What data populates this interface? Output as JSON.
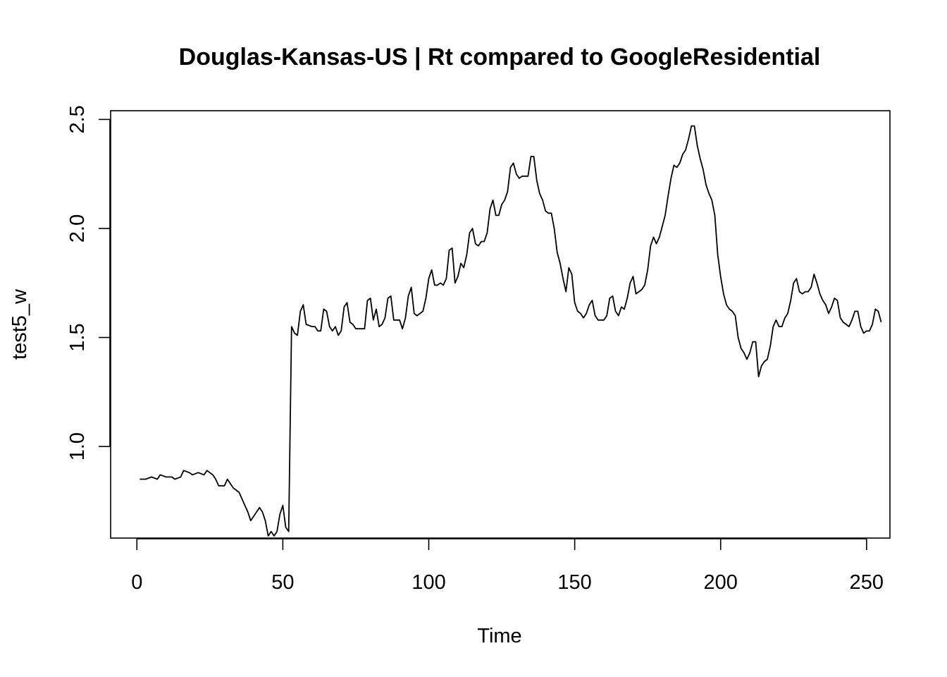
{
  "chart_data": {
    "type": "line",
    "title": "Douglas-Kansas-US | Rt compared to GoogleResidential",
    "xlabel": "Time",
    "ylabel": "test5_w",
    "xlim": [
      -9,
      258
    ],
    "ylim": [
      0.58,
      2.54
    ],
    "xticks": [
      0,
      50,
      100,
      150,
      200,
      250
    ],
    "yticks": [
      1.0,
      1.5,
      2.0,
      2.5
    ],
    "xtick_labels": [
      "0",
      "50",
      "100",
      "150",
      "200",
      "250"
    ],
    "ytick_labels": [
      "1.0",
      "1.5",
      "2.0",
      "2.5"
    ],
    "grid": false,
    "legend": "none",
    "line_color": "#000000",
    "series": [
      {
        "points": [
          [
            1,
            0.85
          ],
          [
            3,
            0.85
          ],
          [
            5,
            0.86
          ],
          [
            7,
            0.85
          ],
          [
            8,
            0.87
          ],
          [
            10,
            0.86
          ],
          [
            12,
            0.86
          ],
          [
            13,
            0.85
          ],
          [
            15,
            0.86
          ],
          [
            16,
            0.89
          ],
          [
            18,
            0.88
          ],
          [
            19,
            0.87
          ],
          [
            21,
            0.88
          ],
          [
            23,
            0.87
          ],
          [
            24,
            0.89
          ],
          [
            26,
            0.87
          ],
          [
            27,
            0.85
          ],
          [
            28,
            0.82
          ],
          [
            30,
            0.82
          ],
          [
            31,
            0.85
          ],
          [
            33,
            0.81
          ],
          [
            35,
            0.79
          ],
          [
            37,
            0.73
          ],
          [
            38,
            0.7
          ],
          [
            39,
            0.66
          ],
          [
            40,
            0.68
          ],
          [
            42,
            0.72
          ],
          [
            43,
            0.7
          ],
          [
            44,
            0.66
          ],
          [
            45,
            0.59
          ],
          [
            46,
            0.61
          ],
          [
            47,
            0.59
          ],
          [
            48,
            0.61
          ],
          [
            49,
            0.69
          ],
          [
            50,
            0.73
          ],
          [
            51,
            0.63
          ],
          [
            52,
            0.61
          ],
          [
            53,
            1.55
          ],
          [
            54,
            1.52
          ],
          [
            55,
            1.51
          ],
          [
            56,
            1.62
          ],
          [
            57,
            1.65
          ],
          [
            58,
            1.56
          ],
          [
            60,
            1.55
          ],
          [
            61,
            1.55
          ],
          [
            62,
            1.53
          ],
          [
            63,
            1.53
          ],
          [
            64,
            1.63
          ],
          [
            65,
            1.62
          ],
          [
            66,
            1.55
          ],
          [
            67,
            1.53
          ],
          [
            68,
            1.55
          ],
          [
            69,
            1.51
          ],
          [
            70,
            1.53
          ],
          [
            71,
            1.64
          ],
          [
            72,
            1.66
          ],
          [
            73,
            1.57
          ],
          [
            74,
            1.56
          ],
          [
            75,
            1.54
          ],
          [
            77,
            1.54
          ],
          [
            78,
            1.54
          ],
          [
            79,
            1.67
          ],
          [
            80,
            1.68
          ],
          [
            81,
            1.58
          ],
          [
            82,
            1.63
          ],
          [
            83,
            1.55
          ],
          [
            84,
            1.56
          ],
          [
            85,
            1.59
          ],
          [
            86,
            1.68
          ],
          [
            87,
            1.69
          ],
          [
            88,
            1.58
          ],
          [
            89,
            1.58
          ],
          [
            90,
            1.58
          ],
          [
            91,
            1.54
          ],
          [
            92,
            1.59
          ],
          [
            93,
            1.69
          ],
          [
            94,
            1.73
          ],
          [
            95,
            1.61
          ],
          [
            96,
            1.6
          ],
          [
            97,
            1.61
          ],
          [
            98,
            1.62
          ],
          [
            99,
            1.68
          ],
          [
            100,
            1.77
          ],
          [
            101,
            1.81
          ],
          [
            102,
            1.74
          ],
          [
            103,
            1.74
          ],
          [
            104,
            1.75
          ],
          [
            105,
            1.74
          ],
          [
            106,
            1.77
          ],
          [
            107,
            1.9
          ],
          [
            108,
            1.91
          ],
          [
            109,
            1.75
          ],
          [
            110,
            1.78
          ],
          [
            111,
            1.84
          ],
          [
            112,
            1.82
          ],
          [
            113,
            1.88
          ],
          [
            114,
            1.98
          ],
          [
            115,
            2.0
          ],
          [
            116,
            1.93
          ],
          [
            117,
            1.92
          ],
          [
            118,
            1.94
          ],
          [
            119,
            1.94
          ],
          [
            120,
            1.98
          ],
          [
            121,
            2.09
          ],
          [
            122,
            2.13
          ],
          [
            123,
            2.06
          ],
          [
            124,
            2.06
          ],
          [
            125,
            2.11
          ],
          [
            126,
            2.13
          ],
          [
            127,
            2.17
          ],
          [
            128,
            2.28
          ],
          [
            129,
            2.3
          ],
          [
            130,
            2.25
          ],
          [
            131,
            2.23
          ],
          [
            132,
            2.24
          ],
          [
            133,
            2.24
          ],
          [
            134,
            2.24
          ],
          [
            135,
            2.33
          ],
          [
            136,
            2.33
          ],
          [
            137,
            2.22
          ],
          [
            138,
            2.16
          ],
          [
            139,
            2.13
          ],
          [
            140,
            2.08
          ],
          [
            141,
            2.07
          ],
          [
            142,
            2.07
          ],
          [
            143,
            2.0
          ],
          [
            144,
            1.89
          ],
          [
            145,
            1.84
          ],
          [
            146,
            1.77
          ],
          [
            147,
            1.71
          ],
          [
            148,
            1.82
          ],
          [
            149,
            1.79
          ],
          [
            150,
            1.66
          ],
          [
            151,
            1.62
          ],
          [
            152,
            1.61
          ],
          [
            153,
            1.59
          ],
          [
            154,
            1.61
          ],
          [
            155,
            1.65
          ],
          [
            156,
            1.67
          ],
          [
            157,
            1.6
          ],
          [
            158,
            1.58
          ],
          [
            159,
            1.58
          ],
          [
            160,
            1.58
          ],
          [
            161,
            1.6
          ],
          [
            162,
            1.68
          ],
          [
            163,
            1.69
          ],
          [
            164,
            1.62
          ],
          [
            165,
            1.6
          ],
          [
            166,
            1.64
          ],
          [
            167,
            1.63
          ],
          [
            168,
            1.68
          ],
          [
            169,
            1.75
          ],
          [
            170,
            1.78
          ],
          [
            171,
            1.7
          ],
          [
            172,
            1.71
          ],
          [
            173,
            1.72
          ],
          [
            174,
            1.74
          ],
          [
            175,
            1.81
          ],
          [
            176,
            1.92
          ],
          [
            177,
            1.96
          ],
          [
            178,
            1.93
          ],
          [
            179,
            1.96
          ],
          [
            180,
            2.01
          ],
          [
            181,
            2.06
          ],
          [
            182,
            2.15
          ],
          [
            183,
            2.23
          ],
          [
            184,
            2.29
          ],
          [
            185,
            2.28
          ],
          [
            186,
            2.3
          ],
          [
            187,
            2.34
          ],
          [
            188,
            2.36
          ],
          [
            189,
            2.41
          ],
          [
            190,
            2.47
          ],
          [
            191,
            2.47
          ],
          [
            192,
            2.38
          ],
          [
            193,
            2.32
          ],
          [
            194,
            2.27
          ],
          [
            195,
            2.2
          ],
          [
            196,
            2.16
          ],
          [
            197,
            2.13
          ],
          [
            198,
            2.06
          ],
          [
            199,
            1.88
          ],
          [
            200,
            1.78
          ],
          [
            201,
            1.7
          ],
          [
            202,
            1.65
          ],
          [
            203,
            1.63
          ],
          [
            204,
            1.62
          ],
          [
            205,
            1.6
          ],
          [
            206,
            1.5
          ],
          [
            207,
            1.45
          ],
          [
            208,
            1.43
          ],
          [
            209,
            1.4
          ],
          [
            210,
            1.43
          ],
          [
            211,
            1.48
          ],
          [
            212,
            1.48
          ],
          [
            213,
            1.32
          ],
          [
            214,
            1.37
          ],
          [
            215,
            1.39
          ],
          [
            216,
            1.4
          ],
          [
            217,
            1.46
          ],
          [
            218,
            1.55
          ],
          [
            219,
            1.58
          ],
          [
            220,
            1.55
          ],
          [
            221,
            1.55
          ],
          [
            222,
            1.59
          ],
          [
            223,
            1.61
          ],
          [
            224,
            1.67
          ],
          [
            225,
            1.75
          ],
          [
            226,
            1.77
          ],
          [
            227,
            1.71
          ],
          [
            228,
            1.7
          ],
          [
            229,
            1.71
          ],
          [
            230,
            1.71
          ],
          [
            231,
            1.73
          ],
          [
            232,
            1.79
          ],
          [
            233,
            1.75
          ],
          [
            234,
            1.7
          ],
          [
            235,
            1.67
          ],
          [
            236,
            1.65
          ],
          [
            237,
            1.61
          ],
          [
            238,
            1.64
          ],
          [
            239,
            1.68
          ],
          [
            240,
            1.67
          ],
          [
            241,
            1.59
          ],
          [
            242,
            1.57
          ],
          [
            243,
            1.56
          ],
          [
            244,
            1.55
          ],
          [
            245,
            1.58
          ],
          [
            246,
            1.62
          ],
          [
            247,
            1.62
          ],
          [
            248,
            1.55
          ],
          [
            249,
            1.52
          ],
          [
            250,
            1.53
          ],
          [
            251,
            1.53
          ],
          [
            252,
            1.56
          ],
          [
            253,
            1.63
          ],
          [
            254,
            1.62
          ],
          [
            255,
            1.57
          ]
        ]
      }
    ]
  }
}
